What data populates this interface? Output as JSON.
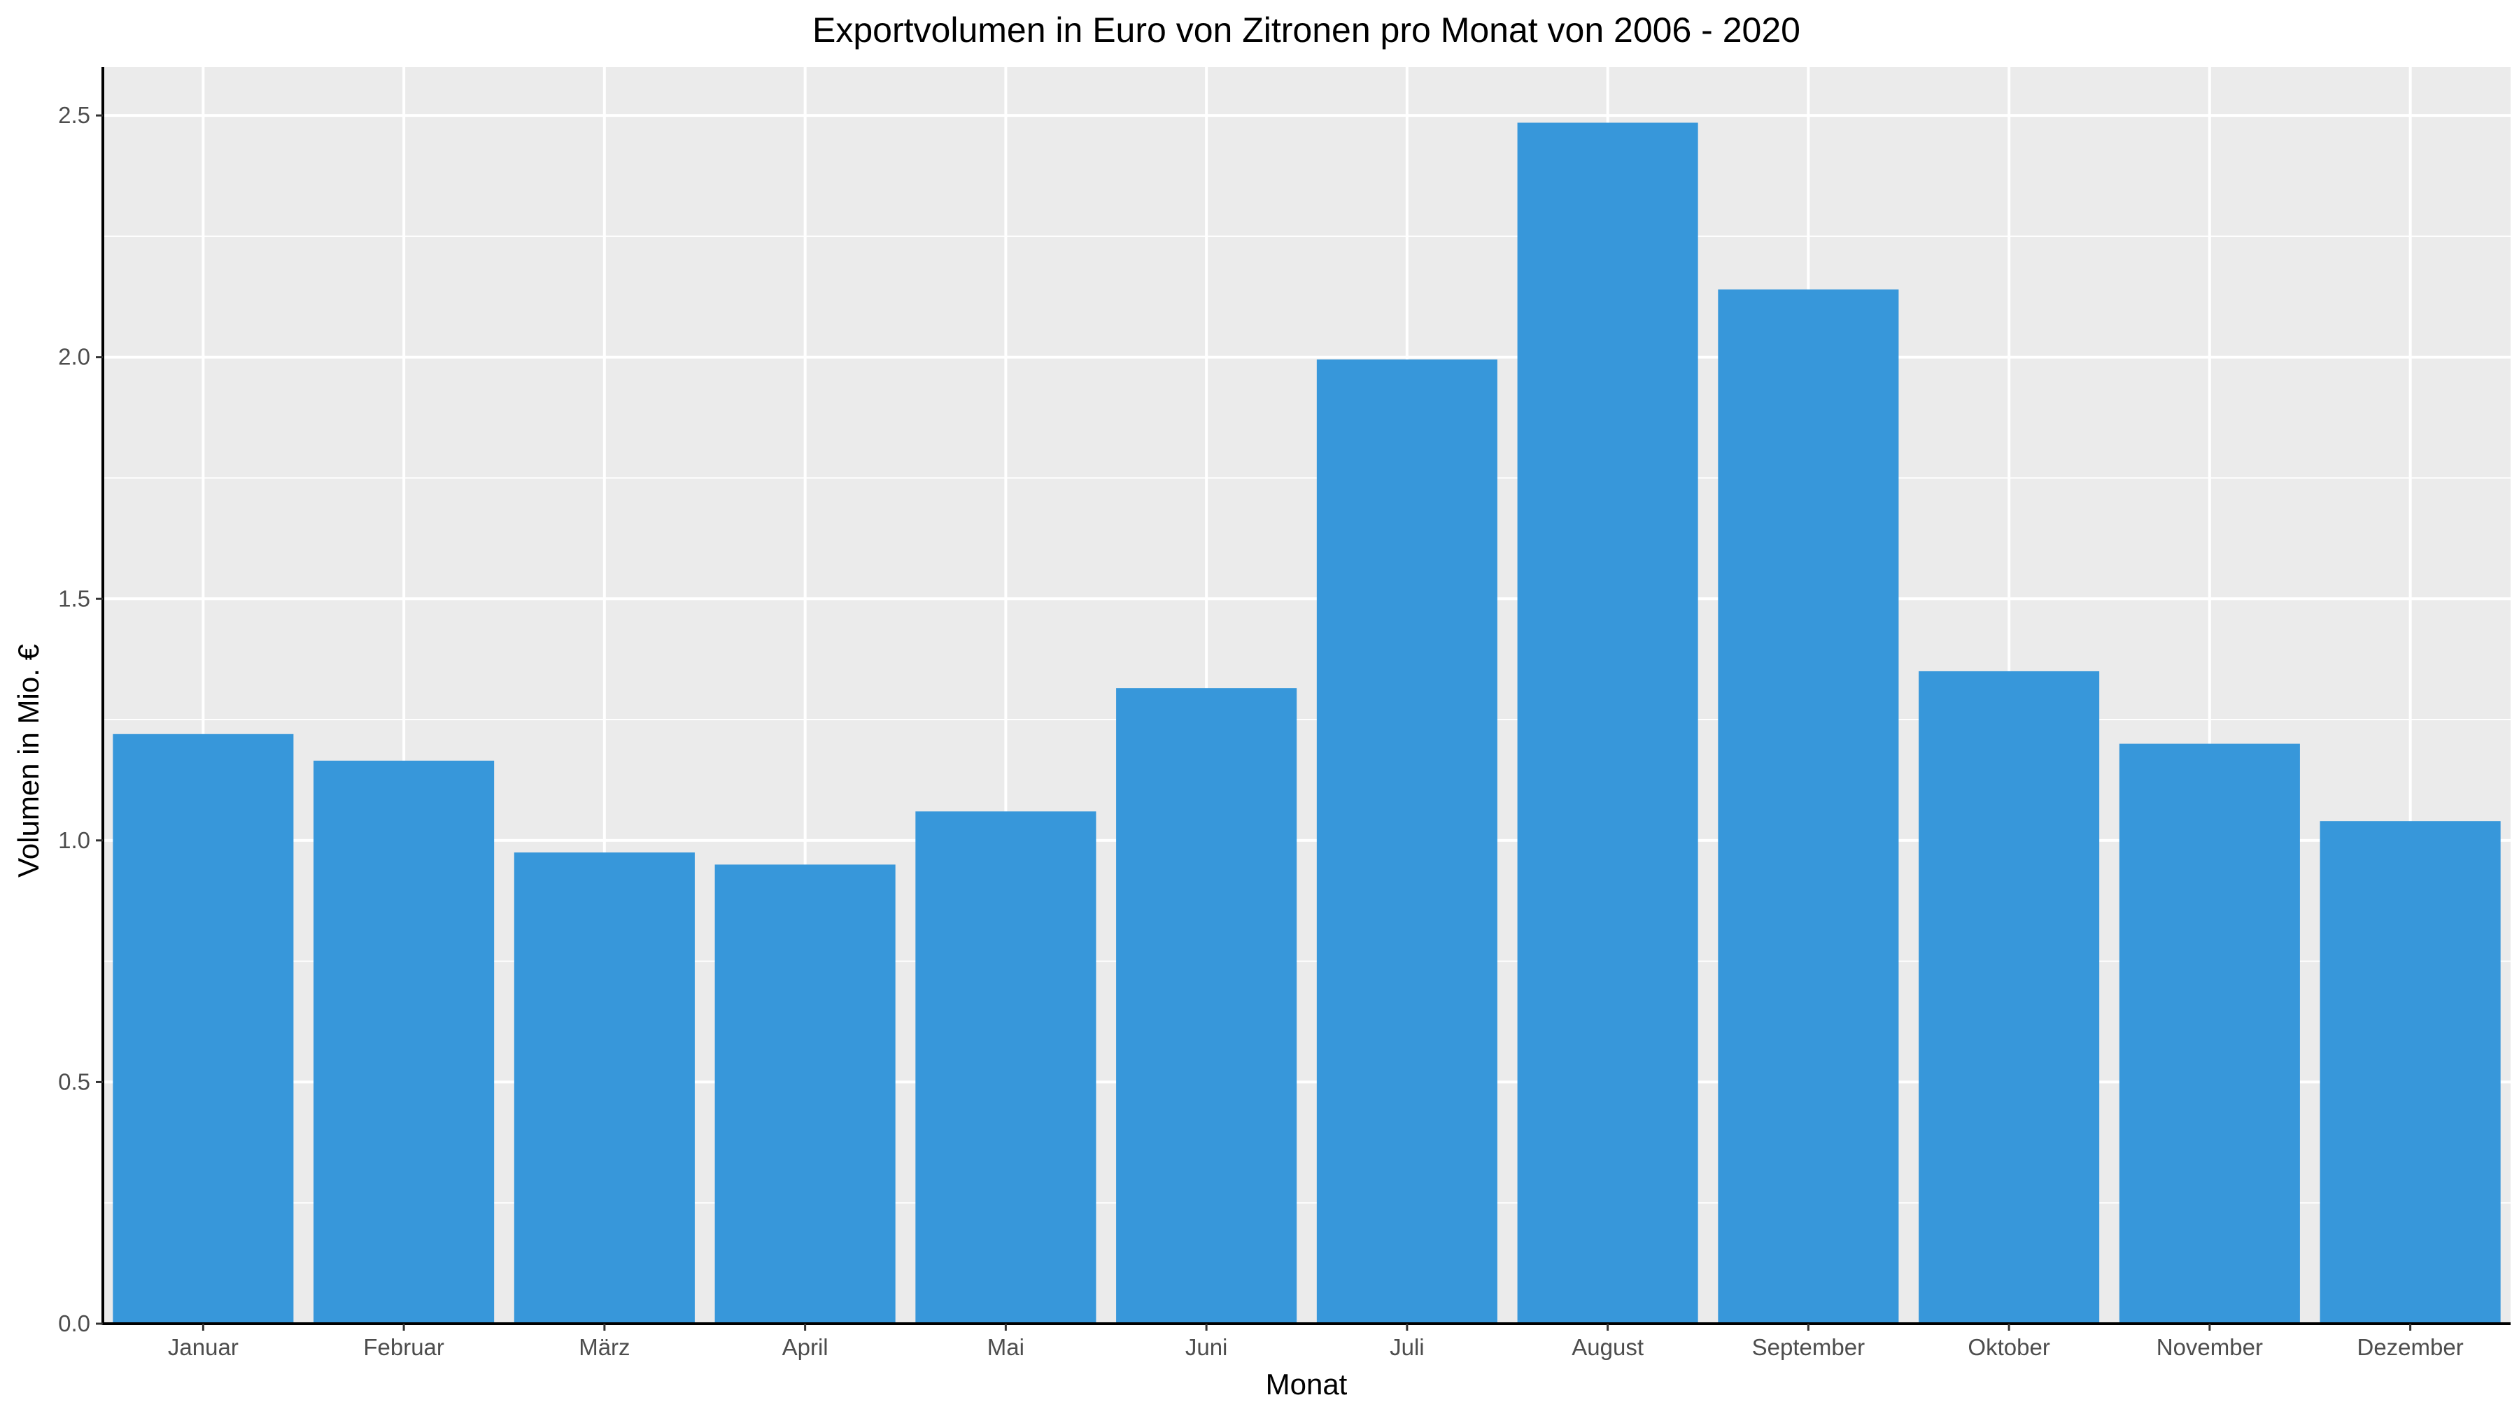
{
  "chart_data": {
    "type": "bar",
    "title": "Exportvolumen in Euro von Zitronen pro Monat von 2006 - 2020",
    "xlabel": "Monat",
    "ylabel": "Volumen in Mio. €",
    "categories": [
      "Januar",
      "Februar",
      "März",
      "April",
      "Mai",
      "Juni",
      "Juli",
      "August",
      "September",
      "Oktober",
      "November",
      "Dezember"
    ],
    "values": [
      1.22,
      1.165,
      0.975,
      0.95,
      1.06,
      1.315,
      1.995,
      2.485,
      2.14,
      1.35,
      1.2,
      1.04
    ],
    "ylim": [
      0,
      2.6
    ],
    "yticks": [
      0.0,
      0.5,
      1.0,
      1.5,
      2.0,
      2.5
    ],
    "ytick_labels": [
      "0.0",
      "0.5",
      "1.0",
      "1.5",
      "2.0",
      "2.5"
    ],
    "grid": true,
    "legend": "none",
    "colors": {
      "bar": "#3797da",
      "panel_background": "#ebebeb",
      "grid": "#ffffff",
      "axis": "#000000",
      "tick_text": "#4d4d4d"
    }
  }
}
